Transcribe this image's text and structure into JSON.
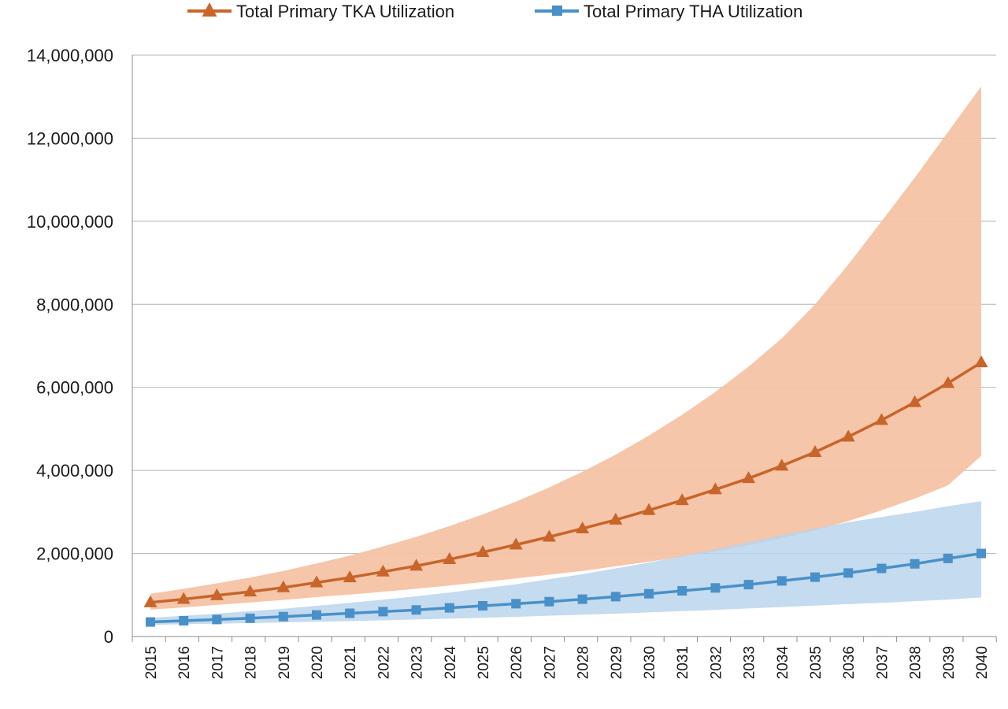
{
  "chart_data": {
    "type": "line",
    "title": "",
    "xlabel": "",
    "ylabel": "",
    "ylim": [
      0,
      14000000
    ],
    "yticks": [
      0,
      2000000,
      4000000,
      6000000,
      8000000,
      10000000,
      12000000,
      14000000
    ],
    "ytick_labels": [
      "0",
      "2,000,000",
      "4,000,000",
      "6,000,000",
      "8,000,000",
      "10,000,000",
      "12,000,000",
      "14,000,000"
    ],
    "grid": true,
    "legend_position": "top",
    "categories": [
      "2015",
      "2016",
      "2017",
      "2018",
      "2019",
      "2020",
      "2021",
      "2022",
      "2023",
      "2024",
      "2025",
      "2026",
      "2027",
      "2028",
      "2029",
      "2030",
      "2031",
      "2032",
      "2033",
      "2034",
      "2035",
      "2036",
      "2037",
      "2038",
      "2039",
      "2040"
    ],
    "series": [
      {
        "name": "Total Primary TKA Utilization",
        "color": "#c8652a",
        "band_color": "#f5c3a5",
        "marker": "triangle",
        "values": [
          820000,
          900000,
          990000,
          1080000,
          1180000,
          1300000,
          1420000,
          1560000,
          1700000,
          1860000,
          2030000,
          2210000,
          2400000,
          2600000,
          2810000,
          3040000,
          3280000,
          3540000,
          3810000,
          4110000,
          4440000,
          4810000,
          5210000,
          5640000,
          6100000,
          6600000
        ],
        "upper": [
          1030000,
          1150000,
          1280000,
          1420000,
          1580000,
          1760000,
          1950000,
          2170000,
          2400000,
          2660000,
          2940000,
          3250000,
          3590000,
          3970000,
          4380000,
          4840000,
          5340000,
          5890000,
          6500000,
          7180000,
          8000000,
          8960000,
          10000000,
          11050000,
          12150000,
          13250000
        ],
        "lower": [
          650000,
          700000,
          760000,
          820000,
          880000,
          950000,
          1010000,
          1080000,
          1150000,
          1230000,
          1310000,
          1400000,
          1490000,
          1580000,
          1690000,
          1800000,
          1920000,
          2050000,
          2200000,
          2370000,
          2560000,
          2780000,
          3040000,
          3320000,
          3640000,
          4350000
        ]
      },
      {
        "name": "Total Primary THA Utilization",
        "color": "#4a90c8",
        "band_color": "#b8d3ec",
        "marker": "square",
        "values": [
          350000,
          380000,
          410000,
          440000,
          480000,
          520000,
          560000,
          600000,
          640000,
          690000,
          740000,
          790000,
          840000,
          900000,
          960000,
          1030000,
          1100000,
          1170000,
          1250000,
          1340000,
          1430000,
          1530000,
          1640000,
          1750000,
          1880000,
          2000000
        ],
        "upper": [
          450000,
          500000,
          550000,
          610000,
          670000,
          740000,
          810000,
          890000,
          970000,
          1060000,
          1160000,
          1260000,
          1380000,
          1500000,
          1640000,
          1780000,
          1940000,
          2100000,
          2270000,
          2450000,
          2600000,
          2750000,
          2880000,
          3000000,
          3140000,
          3260000
        ],
        "lower": [
          280000,
          295000,
          310000,
          325000,
          340000,
          355000,
          370000,
          390000,
          410000,
          430000,
          450000,
          475000,
          500000,
          525000,
          550000,
          580000,
          610000,
          640000,
          675000,
          710000,
          745000,
          780000,
          810000,
          850000,
          890000,
          940000
        ]
      }
    ]
  }
}
